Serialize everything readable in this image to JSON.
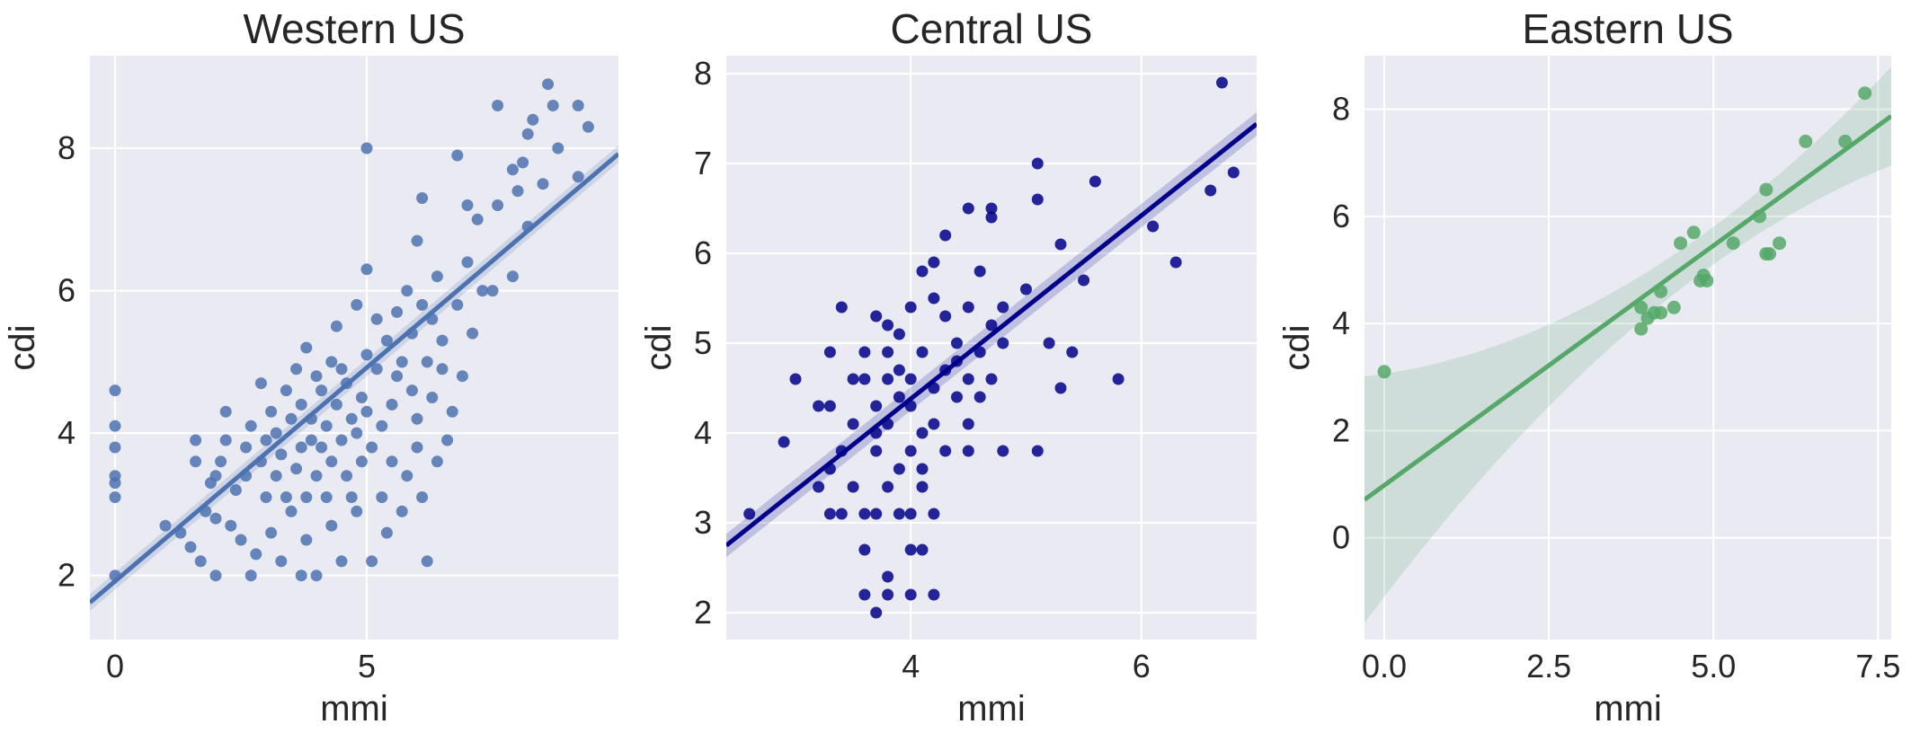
{
  "chart_data": [
    {
      "type": "scatter",
      "title": "Western US",
      "xlabel": "mmi",
      "ylabel": "cdi",
      "xlim": [
        -0.5,
        10
      ],
      "ylim": [
        1.1,
        9.3
      ],
      "xticks": [
        0,
        5
      ],
      "yticks": [
        2,
        4,
        6,
        8
      ],
      "grid": true,
      "color": "#4c72b0",
      "regression": {
        "slope": 0.6,
        "intercept": 1.92
      },
      "band_halfwidth": 0.12,
      "series": [
        {
          "points": [
            [
              0,
              2.0
            ],
            [
              0,
              3.1
            ],
            [
              0,
              3.3
            ],
            [
              0,
              3.4
            ],
            [
              0,
              3.8
            ],
            [
              0,
              4.1
            ],
            [
              0,
              4.6
            ],
            [
              1.0,
              2.7
            ],
            [
              1.3,
              2.6
            ],
            [
              1.5,
              2.4
            ],
            [
              1.6,
              3.9
            ],
            [
              1.6,
              3.6
            ],
            [
              1.7,
              2.2
            ],
            [
              1.8,
              2.9
            ],
            [
              1.9,
              3.3
            ],
            [
              2.0,
              2.8
            ],
            [
              2.0,
              3.4
            ],
            [
              2.0,
              2.0
            ],
            [
              2.1,
              3.6
            ],
            [
              2.2,
              4.3
            ],
            [
              2.2,
              3.9
            ],
            [
              2.3,
              2.7
            ],
            [
              2.4,
              3.2
            ],
            [
              2.5,
              2.5
            ],
            [
              2.6,
              3.8
            ],
            [
              2.6,
              3.4
            ],
            [
              2.7,
              2.0
            ],
            [
              2.7,
              4.1
            ],
            [
              2.8,
              2.3
            ],
            [
              2.9,
              3.6
            ],
            [
              2.9,
              4.7
            ],
            [
              3.0,
              3.1
            ],
            [
              3.0,
              3.9
            ],
            [
              3.1,
              2.6
            ],
            [
              3.1,
              4.3
            ],
            [
              3.2,
              3.4
            ],
            [
              3.2,
              4.0
            ],
            [
              3.3,
              2.2
            ],
            [
              3.3,
              3.7
            ],
            [
              3.4,
              4.6
            ],
            [
              3.4,
              3.1
            ],
            [
              3.5,
              2.9
            ],
            [
              3.5,
              4.2
            ],
            [
              3.6,
              3.5
            ],
            [
              3.6,
              4.9
            ],
            [
              3.7,
              2.0
            ],
            [
              3.7,
              3.8
            ],
            [
              3.7,
              4.4
            ],
            [
              3.8,
              3.1
            ],
            [
              3.8,
              2.5
            ],
            [
              3.8,
              5.2
            ],
            [
              3.9,
              3.9
            ],
            [
              3.9,
              4.2
            ],
            [
              4.0,
              3.4
            ],
            [
              4.0,
              4.8
            ],
            [
              4.0,
              2.0
            ],
            [
              4.1,
              3.8
            ],
            [
              4.1,
              4.6
            ],
            [
              4.2,
              3.1
            ],
            [
              4.2,
              4.1
            ],
            [
              4.3,
              2.7
            ],
            [
              4.3,
              5.0
            ],
            [
              4.3,
              3.6
            ],
            [
              4.4,
              4.4
            ],
            [
              4.4,
              5.5
            ],
            [
              4.5,
              3.9
            ],
            [
              4.5,
              2.2
            ],
            [
              4.5,
              4.9
            ],
            [
              4.6,
              3.4
            ],
            [
              4.6,
              4.7
            ],
            [
              4.7,
              4.2
            ],
            [
              4.7,
              3.1
            ],
            [
              4.8,
              5.8
            ],
            [
              4.8,
              4.0
            ],
            [
              4.8,
              2.9
            ],
            [
              4.9,
              4.5
            ],
            [
              4.9,
              3.6
            ],
            [
              5.0,
              5.1
            ],
            [
              5.0,
              8.0
            ],
            [
              5.0,
              4.3
            ],
            [
              5.0,
              6.3
            ],
            [
              5.1,
              3.8
            ],
            [
              5.1,
              2.2
            ],
            [
              5.2,
              4.9
            ],
            [
              5.2,
              5.6
            ],
            [
              5.3,
              3.1
            ],
            [
              5.3,
              4.1
            ],
            [
              5.4,
              5.3
            ],
            [
              5.4,
              2.6
            ],
            [
              5.5,
              4.4
            ],
            [
              5.5,
              3.6
            ],
            [
              5.6,
              5.7
            ],
            [
              5.6,
              4.8
            ],
            [
              5.7,
              2.9
            ],
            [
              5.7,
              5.0
            ],
            [
              5.8,
              3.4
            ],
            [
              5.8,
              6.0
            ],
            [
              5.9,
              4.6
            ],
            [
              5.9,
              5.4
            ],
            [
              6.0,
              3.8
            ],
            [
              6.0,
              6.7
            ],
            [
              6.0,
              4.2
            ],
            [
              6.1,
              5.8
            ],
            [
              6.1,
              7.3
            ],
            [
              6.1,
              3.1
            ],
            [
              6.2,
              5.0
            ],
            [
              6.2,
              2.2
            ],
            [
              6.3,
              4.5
            ],
            [
              6.3,
              5.6
            ],
            [
              6.4,
              6.2
            ],
            [
              6.4,
              3.6
            ],
            [
              6.5,
              4.9
            ],
            [
              6.5,
              5.3
            ],
            [
              6.6,
              3.9
            ],
            [
              6.7,
              4.3
            ],
            [
              6.8,
              5.8
            ],
            [
              6.8,
              7.9
            ],
            [
              6.9,
              4.8
            ],
            [
              7.0,
              6.4
            ],
            [
              7.0,
              7.2
            ],
            [
              7.1,
              5.4
            ],
            [
              7.2,
              7.0
            ],
            [
              7.3,
              6.0
            ],
            [
              7.5,
              6.0
            ],
            [
              7.6,
              8.6
            ],
            [
              7.6,
              7.2
            ],
            [
              7.9,
              7.7
            ],
            [
              7.9,
              6.2
            ],
            [
              8.0,
              7.4
            ],
            [
              8.1,
              7.8
            ],
            [
              8.2,
              8.2
            ],
            [
              8.2,
              6.9
            ],
            [
              8.3,
              8.4
            ],
            [
              8.5,
              7.5
            ],
            [
              8.6,
              8.9
            ],
            [
              8.7,
              8.6
            ],
            [
              8.8,
              8.0
            ],
            [
              9.2,
              8.6
            ],
            [
              9.2,
              7.6
            ],
            [
              9.4,
              8.3
            ]
          ]
        }
      ]
    },
    {
      "type": "scatter",
      "title": "Central US",
      "xlabel": "mmi",
      "ylabel": "cdi",
      "xlim": [
        2.4,
        7.0
      ],
      "ylim": [
        1.7,
        8.2
      ],
      "xticks": [
        4,
        6
      ],
      "yticks": [
        2,
        3,
        4,
        5,
        6,
        7,
        8
      ],
      "grid": true,
      "color": "#00008b",
      "regression": {
        "slope": 1.02,
        "intercept": 0.3
      },
      "band_halfwidth": 0.13,
      "series": [
        {
          "points": [
            [
              2.6,
              3.1
            ],
            [
              2.9,
              3.9
            ],
            [
              3.0,
              4.6
            ],
            [
              3.2,
              3.4
            ],
            [
              3.2,
              4.3
            ],
            [
              3.3,
              3.1
            ],
            [
              3.3,
              4.3
            ],
            [
              3.3,
              3.6
            ],
            [
              3.3,
              4.9
            ],
            [
              3.4,
              3.8
            ],
            [
              3.4,
              5.4
            ],
            [
              3.4,
              3.1
            ],
            [
              3.5,
              4.6
            ],
            [
              3.5,
              4.1
            ],
            [
              3.5,
              3.4
            ],
            [
              3.6,
              4.9
            ],
            [
              3.6,
              3.1
            ],
            [
              3.6,
              2.2
            ],
            [
              3.6,
              4.6
            ],
            [
              3.6,
              2.7
            ],
            [
              3.7,
              5.3
            ],
            [
              3.7,
              4.3
            ],
            [
              3.7,
              3.8
            ],
            [
              3.7,
              3.1
            ],
            [
              3.7,
              4.0
            ],
            [
              3.7,
              2.0
            ],
            [
              3.8,
              5.2
            ],
            [
              3.8,
              4.6
            ],
            [
              3.8,
              2.4
            ],
            [
              3.8,
              3.4
            ],
            [
              3.8,
              4.9
            ],
            [
              3.8,
              2.2
            ],
            [
              3.8,
              4.1
            ],
            [
              3.9,
              3.1
            ],
            [
              3.9,
              4.4
            ],
            [
              3.9,
              5.1
            ],
            [
              3.9,
              3.6
            ],
            [
              3.9,
              4.7
            ],
            [
              4.0,
              2.7
            ],
            [
              4.0,
              3.8
            ],
            [
              4.0,
              4.3
            ],
            [
              4.0,
              5.4
            ],
            [
              4.0,
              3.1
            ],
            [
              4.0,
              2.2
            ],
            [
              4.0,
              4.6
            ],
            [
              4.1,
              3.4
            ],
            [
              4.1,
              4.0
            ],
            [
              4.1,
              5.8
            ],
            [
              4.1,
              4.9
            ],
            [
              4.1,
              3.6
            ],
            [
              4.1,
              2.7
            ],
            [
              4.2,
              4.5
            ],
            [
              4.2,
              5.5
            ],
            [
              4.2,
              3.1
            ],
            [
              4.2,
              4.1
            ],
            [
              4.2,
              2.2
            ],
            [
              4.2,
              5.9
            ],
            [
              4.3,
              4.7
            ],
            [
              4.3,
              3.8
            ],
            [
              4.3,
              5.3
            ],
            [
              4.3,
              6.2
            ],
            [
              4.4,
              4.4
            ],
            [
              4.4,
              5.0
            ],
            [
              4.4,
              4.8
            ],
            [
              4.5,
              4.1
            ],
            [
              4.5,
              5.4
            ],
            [
              4.5,
              6.5
            ],
            [
              4.5,
              4.6
            ],
            [
              4.5,
              3.8
            ],
            [
              4.6,
              4.9
            ],
            [
              4.6,
              5.8
            ],
            [
              4.6,
              4.4
            ],
            [
              4.7,
              6.5
            ],
            [
              4.7,
              5.2
            ],
            [
              4.7,
              4.6
            ],
            [
              4.7,
              6.4
            ],
            [
              4.8,
              5.0
            ],
            [
              4.8,
              3.8
            ],
            [
              4.8,
              5.4
            ],
            [
              5.0,
              5.6
            ],
            [
              5.1,
              7.0
            ],
            [
              5.1,
              6.6
            ],
            [
              5.1,
              3.8
            ],
            [
              5.2,
              5.0
            ],
            [
              5.3,
              6.1
            ],
            [
              5.3,
              4.5
            ],
            [
              5.4,
              4.9
            ],
            [
              5.5,
              5.7
            ],
            [
              5.6,
              6.8
            ],
            [
              5.8,
              4.6
            ],
            [
              6.1,
              6.3
            ],
            [
              6.3,
              5.9
            ],
            [
              6.6,
              6.7
            ],
            [
              6.7,
              7.9
            ],
            [
              6.8,
              6.9
            ]
          ]
        }
      ]
    },
    {
      "type": "scatter",
      "title": "Eastern US",
      "xlabel": "mmi",
      "ylabel": "cdi",
      "xlim": [
        -0.3,
        7.7
      ],
      "ylim": [
        -1.9,
        9.0
      ],
      "xticks": [
        0.0,
        2.5,
        5.0,
        7.5
      ],
      "xtick_labels": [
        "0.0",
        "2.5",
        "5.0",
        "7.5"
      ],
      "yticks": [
        0,
        2,
        4,
        6,
        8
      ],
      "grid": true,
      "color": "#55a868",
      "regression": {
        "slope": 0.895,
        "intercept": 0.98
      },
      "band_halfwidth_min": 0.35,
      "band_halfwidth_max": 2.3,
      "series": [
        {
          "points": [
            [
              0.0,
              3.1
            ],
            [
              3.9,
              3.9
            ],
            [
              3.9,
              4.3
            ],
            [
              4.0,
              4.1
            ],
            [
              4.1,
              4.2
            ],
            [
              4.2,
              4.2
            ],
            [
              4.2,
              4.6
            ],
            [
              4.4,
              4.3
            ],
            [
              4.5,
              5.5
            ],
            [
              4.7,
              5.7
            ],
            [
              4.8,
              4.8
            ],
            [
              4.85,
              4.9
            ],
            [
              4.9,
              4.8
            ],
            [
              5.3,
              5.5
            ],
            [
              5.7,
              6.0
            ],
            [
              5.8,
              5.3
            ],
            [
              5.8,
              6.5
            ],
            [
              5.85,
              5.3
            ],
            [
              6.0,
              5.5
            ],
            [
              6.4,
              7.4
            ],
            [
              7.0,
              7.4
            ],
            [
              7.3,
              8.3
            ]
          ]
        }
      ]
    }
  ]
}
